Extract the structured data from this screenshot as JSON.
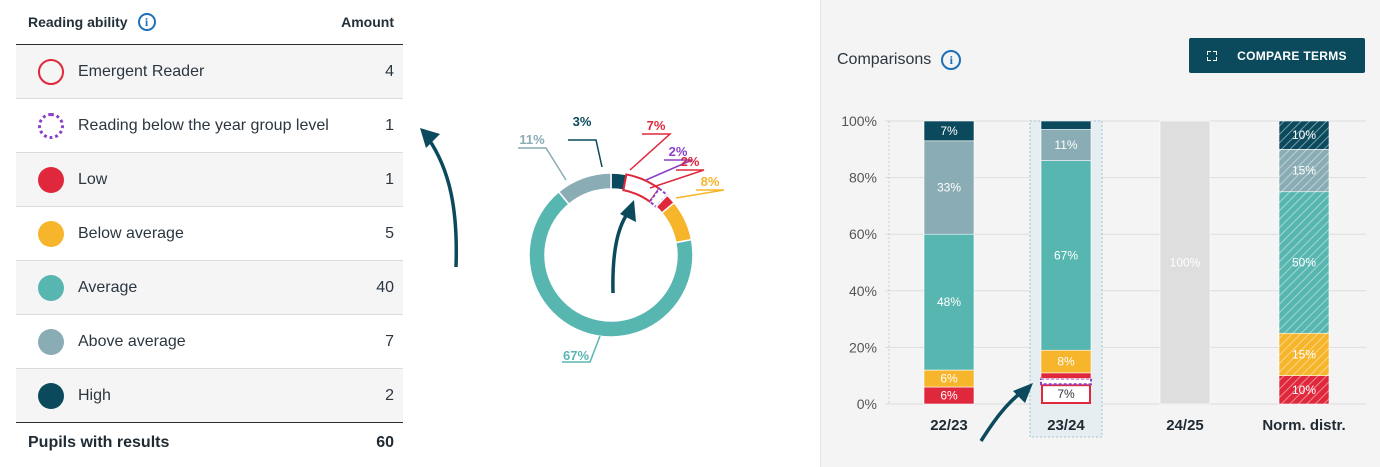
{
  "table": {
    "header": {
      "label": "Reading ability",
      "amount_label": "Amount"
    },
    "rows": [
      {
        "label": "Emergent Reader",
        "amount": "4",
        "color": "#e0283c",
        "style": "ring"
      },
      {
        "label": "Reading below the year group level",
        "amount": "1",
        "color": "#8a3fc8",
        "style": "dotted-ring"
      },
      {
        "label": "Low",
        "amount": "1",
        "color": "#e0283c",
        "style": "solid"
      },
      {
        "label": "Below average",
        "amount": "5",
        "color": "#f6b52a",
        "style": "solid"
      },
      {
        "label": "Average",
        "amount": "40",
        "color": "#58b6b0",
        "style": "solid"
      },
      {
        "label": "Above average",
        "amount": "7",
        "color": "#8aacb4",
        "style": "solid"
      },
      {
        "label": "High",
        "amount": "2",
        "color": "#0b4a5c",
        "style": "solid"
      }
    ],
    "footer": {
      "label": "Pupils with results",
      "amount": "60"
    }
  },
  "comparisons": {
    "title": "Comparisons",
    "button_label": "COMPARE TERMS"
  },
  "chart_data": [
    {
      "type": "pie",
      "variant": "donut",
      "slices": [
        {
          "label": "3%",
          "value": 3,
          "color": "#0b4a5c",
          "style": "solid"
        },
        {
          "label": "7%",
          "value": 7,
          "color": "#e0283c",
          "style": "outline"
        },
        {
          "label": "2%",
          "value": 2,
          "color": "#8a3fc8",
          "style": "dashed"
        },
        {
          "label": "2%",
          "value": 2,
          "color": "#e0283c",
          "style": "solid"
        },
        {
          "label": "8%",
          "value": 8,
          "color": "#f6b52a",
          "style": "solid"
        },
        {
          "label": "67%",
          "value": 67,
          "color": "#58b6b0",
          "style": "solid"
        },
        {
          "label": "11%",
          "value": 11,
          "color": "#8aacb4",
          "style": "solid"
        }
      ]
    },
    {
      "type": "bar",
      "stacked": true,
      "categories": [
        "22/23",
        "23/24",
        "24/25",
        "Norm. distr."
      ],
      "ylim": [
        0,
        100
      ],
      "yticks": [
        "0%",
        "20%",
        "40%",
        "60%",
        "80%",
        "100%"
      ],
      "highlighted_category": "23/24",
      "series": [
        {
          "key": "emergent",
          "color": "#e0283c",
          "style": "outline",
          "values": [
            0,
            7,
            0,
            0
          ],
          "labels": [
            "",
            "7%",
            "",
            ""
          ]
        },
        {
          "key": "below_year",
          "color": "#8a3fc8",
          "style": "dashed",
          "values": [
            0,
            2,
            0,
            0
          ],
          "labels": [
            "",
            "",
            "",
            ""
          ]
        },
        {
          "key": "low",
          "color": "#e0283c",
          "style": "solid",
          "values": [
            6,
            2,
            0,
            10
          ],
          "labels": [
            "6%",
            "",
            "",
            "10%"
          ]
        },
        {
          "key": "below_avg",
          "color": "#f6b52a",
          "style": "solid",
          "values": [
            6,
            8,
            0,
            15
          ],
          "labels": [
            "6%",
            "8%",
            "",
            "15%"
          ]
        },
        {
          "key": "average",
          "color": "#58b6b0",
          "style": "solid",
          "values": [
            48,
            67,
            0,
            50
          ],
          "labels": [
            "48%",
            "67%",
            "",
            "50%"
          ]
        },
        {
          "key": "above_avg",
          "color": "#8aacb4",
          "style": "solid",
          "values": [
            33,
            11,
            0,
            15
          ],
          "labels": [
            "33%",
            "11%",
            "",
            "15%"
          ]
        },
        {
          "key": "high",
          "color": "#0b4a5c",
          "style": "solid",
          "values": [
            7,
            3,
            0,
            10
          ],
          "labels": [
            "7%",
            "",
            "",
            "10%"
          ]
        },
        {
          "key": "no_data",
          "color": "#dedede",
          "style": "solid",
          "values": [
            0,
            0,
            100,
            0
          ],
          "labels": [
            "",
            "",
            "100%",
            ""
          ]
        }
      ]
    }
  ]
}
